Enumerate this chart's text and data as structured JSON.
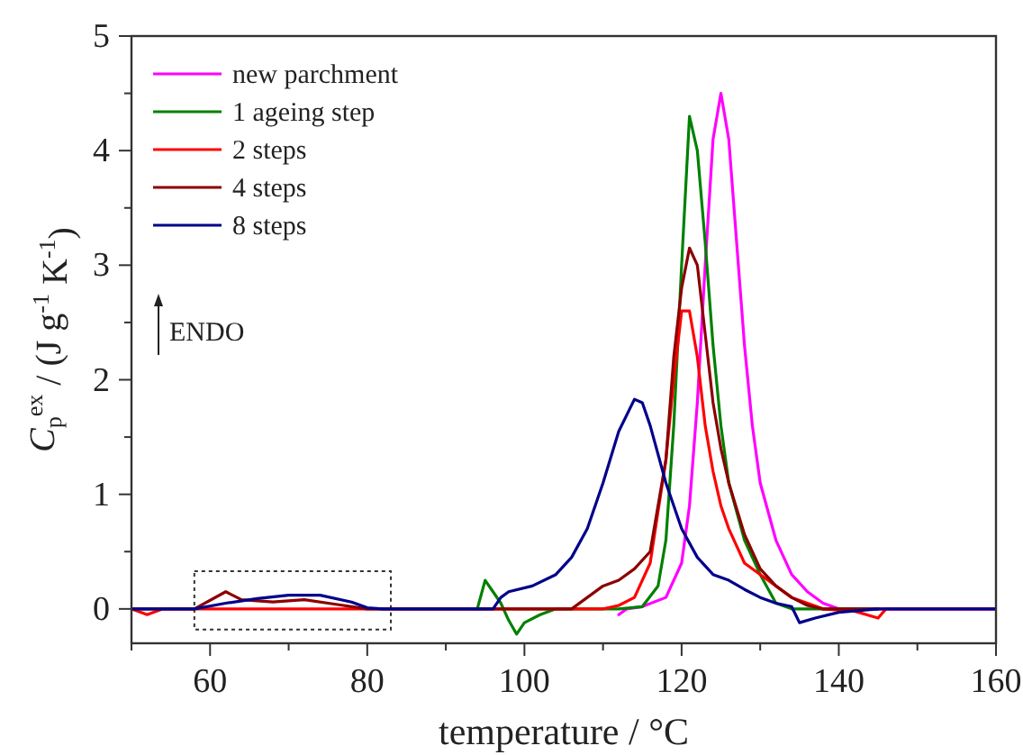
{
  "chart_data": {
    "type": "line",
    "xlabel": "temperature / °C",
    "ylabel": "C$_{p}$$^{ex}$ / (J g$^{-1}$ K$^{-1}$)",
    "annotations": [
      "ENDO"
    ],
    "xlim": [
      50,
      160
    ],
    "xticks": [
      {
        "value": 50,
        "label": null
      },
      60,
      {
        "value": 70,
        "label": null
      },
      80,
      {
        "value": 90,
        "label": null
      },
      100,
      {
        "value": 110,
        "label": null
      },
      120,
      {
        "value": 130,
        "label": null
      },
      140,
      {
        "value": 150,
        "label": null
      },
      160
    ],
    "ylim": [
      -0.3,
      5
    ],
    "yticks": [
      0,
      {
        "value": 0.5,
        "label": null
      },
      1,
      {
        "value": 1.5,
        "label": null
      },
      2,
      {
        "value": 2.5,
        "label": null
      },
      3,
      {
        "value": 3.5,
        "label": null
      },
      4,
      {
        "value": 4.5,
        "label": null
      },
      5
    ],
    "legend": "top left",
    "grid": false,
    "marker": "none",
    "line_style": "solid",
    "series": [
      {
        "name": "new parchment",
        "color": "#ff00ff",
        "x": [
          112,
          113,
          115,
          118,
          120,
          121,
          122,
          123,
          124,
          125,
          126,
          127,
          128,
          129,
          130,
          132,
          134,
          136,
          138,
          140,
          150,
          160
        ],
        "values": [
          -0.05,
          0,
          0.02,
          0.1,
          0.4,
          0.9,
          1.8,
          3.0,
          4.1,
          4.5,
          4.1,
          3.2,
          2.3,
          1.6,
          1.1,
          0.6,
          0.3,
          0.15,
          0.05,
          0,
          0,
          0
        ]
      },
      {
        "name": "1 ageing step",
        "color": "#008000",
        "x": [
          94,
          95,
          96,
          97,
          98,
          99,
          100,
          102,
          104,
          112,
          115,
          117,
          118,
          119,
          120,
          121,
          122,
          123,
          124,
          125,
          126,
          128,
          130,
          132,
          134,
          145
        ],
        "values": [
          0,
          0.25,
          0.15,
          0.05,
          -0.1,
          -0.22,
          -0.12,
          -0.05,
          0,
          0,
          0.02,
          0.2,
          0.6,
          1.6,
          3.0,
          4.3,
          4.0,
          3.2,
          2.3,
          1.6,
          1.1,
          0.6,
          0.3,
          0.05,
          0,
          0
        ]
      },
      {
        "name": "2 steps",
        "color": "#ff0000",
        "x": [
          50,
          52,
          54,
          70,
          90,
          110,
          112,
          114,
          116,
          118,
          119,
          120,
          121,
          122,
          123,
          124,
          125,
          126,
          128,
          130,
          132,
          134,
          136,
          138,
          142,
          145,
          146,
          160
        ],
        "values": [
          0,
          -0.05,
          0,
          0,
          0,
          0,
          0.03,
          0.1,
          0.4,
          1.3,
          2.0,
          2.6,
          2.6,
          2.2,
          1.6,
          1.2,
          0.9,
          0.7,
          0.4,
          0.3,
          0.2,
          0.1,
          0.05,
          0,
          -0.02,
          -0.08,
          0,
          0
        ]
      },
      {
        "name": "4 steps",
        "color": "#8b0000",
        "x": [
          50,
          58,
          62,
          64,
          68,
          72,
          76,
          80,
          90,
          106,
          108,
          110,
          112,
          114,
          116,
          118,
          119,
          120,
          121,
          122,
          123,
          124,
          125,
          126,
          128,
          130,
          132,
          134,
          136,
          138,
          145
        ],
        "values": [
          0,
          0,
          0.15,
          0.08,
          0.06,
          0.08,
          0.04,
          0,
          0,
          0,
          0.1,
          0.2,
          0.25,
          0.35,
          0.5,
          1.3,
          2.2,
          2.8,
          3.15,
          3.0,
          2.4,
          1.8,
          1.4,
          1.1,
          0.65,
          0.35,
          0.2,
          0.1,
          0.03,
          0,
          0
        ]
      },
      {
        "name": "8 steps",
        "color": "#00008b",
        "x": [
          50,
          58,
          62,
          66,
          70,
          74,
          78,
          80,
          82,
          96,
          97,
          98,
          101,
          104,
          106,
          108,
          110,
          112,
          114,
          115,
          116,
          118,
          120,
          122,
          124,
          126,
          128,
          130,
          132,
          134,
          135,
          137,
          140,
          145,
          160
        ],
        "values": [
          0,
          0,
          0.05,
          0.09,
          0.12,
          0.12,
          0.06,
          0.01,
          0,
          0,
          0.1,
          0.15,
          0.2,
          0.3,
          0.45,
          0.7,
          1.1,
          1.55,
          1.83,
          1.8,
          1.6,
          1.1,
          0.7,
          0.45,
          0.3,
          0.25,
          0.17,
          0.1,
          0.05,
          0.02,
          -0.12,
          -0.08,
          -0.03,
          0,
          0
        ]
      }
    ]
  }
}
